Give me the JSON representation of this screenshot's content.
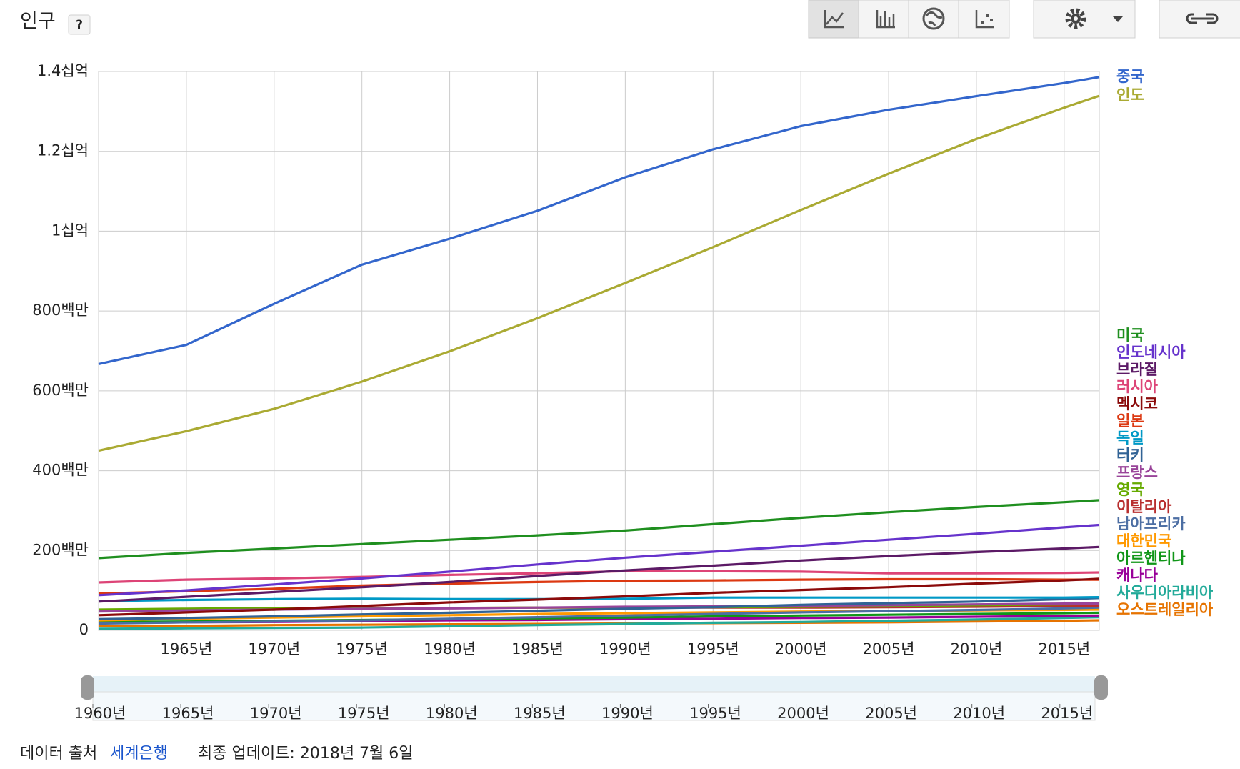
{
  "header": {
    "title": "인구",
    "help": "?"
  },
  "chart_data": {
    "type": "line",
    "x": [
      1960,
      1965,
      1970,
      1975,
      1980,
      1985,
      1990,
      1995,
      2000,
      2005,
      2010,
      2015,
      2017
    ],
    "xlim": [
      1960,
      2017
    ],
    "xticks": [
      {
        "value": 1965,
        "label": "1965년"
      },
      {
        "value": 1970,
        "label": "1970년"
      },
      {
        "value": 1975,
        "label": "1975년"
      },
      {
        "value": 1980,
        "label": "1980년"
      },
      {
        "value": 1985,
        "label": "1985년"
      },
      {
        "value": 1990,
        "label": "1990년"
      },
      {
        "value": 1995,
        "label": "1995년"
      },
      {
        "value": 2000,
        "label": "2000년"
      },
      {
        "value": 2005,
        "label": "2005년"
      },
      {
        "value": 2010,
        "label": "2010년"
      },
      {
        "value": 2015,
        "label": "2015년"
      }
    ],
    "ylim": [
      0,
      1400000000.0
    ],
    "yticks": [
      0,
      {
        "value": 200000000.0,
        "label": "200백만"
      },
      {
        "value": 400000000.0,
        "label": "400백만"
      },
      {
        "value": 600000000.0,
        "label": "600백만"
      },
      {
        "value": 800000000.0,
        "label": "800백만"
      },
      {
        "value": 1000000000.0,
        "label": "1십억"
      },
      {
        "value": 1200000000.0,
        "label": "1.2십억"
      },
      {
        "value": 1400000000.0,
        "label": "1.4십억"
      }
    ],
    "grid": true,
    "series": [
      {
        "name": "중국",
        "color": "#3366cc",
        "values": [
          667000000.0,
          715000000.0,
          818000000.0,
          916000000.0,
          981000000.0,
          1051000000.0,
          1135000000.0,
          1205000000.0,
          1263000000.0,
          1304000000.0,
          1338000000.0,
          1371000000.0,
          1386000000.0
        ]
      },
      {
        "name": "인도",
        "color": "#aaaa33",
        "values": [
          450000000.0,
          499000000.0,
          555000000.0,
          623000000.0,
          699000000.0,
          782000000.0,
          870000000.0,
          960000000.0,
          1053000000.0,
          1144000000.0,
          1231000000.0,
          1309000000.0,
          1339000000.0
        ]
      },
      {
        "name": "미국",
        "color": "#1f8f1f",
        "values": [
          181000000.0,
          194000000.0,
          205000000.0,
          216000000.0,
          227000000.0,
          238000000.0,
          250000000.0,
          266000000.0,
          282000000.0,
          296000000.0,
          309000000.0,
          321000000.0,
          326000000.0
        ]
      },
      {
        "name": "인도네시아",
        "color": "#6633cc",
        "values": [
          88000000.0,
          100000000.0,
          115000000.0,
          130000000.0,
          147000000.0,
          165000000.0,
          182000000.0,
          197000000.0,
          212000000.0,
          227000000.0,
          242000000.0,
          258000000.0,
          264000000.0
        ]
      },
      {
        "name": "브라질",
        "color": "#5c1a66",
        "values": [
          72000000.0,
          84000000.0,
          96000000.0,
          108000000.0,
          121000000.0,
          136000000.0,
          150000000.0,
          162000000.0,
          175000000.0,
          186000000.0,
          196000000.0,
          205000000.0,
          209000000.0
        ]
      },
      {
        "name": "러시아",
        "color": "#dd4477",
        "values": [
          120000000.0,
          127000000.0,
          130000000.0,
          134000000.0,
          139000000.0,
          143000000.0,
          148000000.0,
          148000000.0,
          147000000.0,
          143000000.0,
          143000000.0,
          144000000.0,
          145000000.0
        ]
      },
      {
        "name": "멕시코",
        "color": "#8b0a0a",
        "values": [
          38000000.0,
          45000000.0,
          52000000.0,
          61000000.0,
          70000000.0,
          77000000.0,
          85000000.0,
          94000000.0,
          101000000.0,
          108000000.0,
          117000000.0,
          125000000.0,
          129000000.0
        ]
      },
      {
        "name": "일본",
        "color": "#dc3912",
        "values": [
          92000000.0,
          98000000.0,
          104000000.0,
          112000000.0,
          117000000.0,
          121000000.0,
          124000000.0,
          125000000.0,
          127000000.0,
          128000000.0,
          128000000.0,
          127000000.0,
          127000000.0
        ]
      },
      {
        "name": "독일",
        "color": "#0099c6",
        "values": [
          73000000.0,
          76000000.0,
          78000000.0,
          79000000.0,
          78000000.0,
          78000000.0,
          79000000.0,
          82000000.0,
          82000000.0,
          82000000.0,
          82000000.0,
          82000000.0,
          83000000.0
        ]
      },
      {
        "name": "터키",
        "color": "#316395",
        "values": [
          28000000.0,
          31000000.0,
          35000000.0,
          40000000.0,
          44000000.0,
          49000000.0,
          54000000.0,
          58000000.0,
          64000000.0,
          68000000.0,
          72000000.0,
          78000000.0,
          81000000.0
        ]
      },
      {
        "name": "프랑스",
        "color": "#994499",
        "values": [
          47000000.0,
          50000000.0,
          52000000.0,
          54000000.0,
          55000000.0,
          57000000.0,
          59000000.0,
          60000000.0,
          61000000.0,
          63000000.0,
          65000000.0,
          67000000.0,
          67000000.0
        ]
      },
      {
        "name": "영국",
        "color": "#66aa00",
        "values": [
          52000000.0,
          54000000.0,
          56000000.0,
          56000000.0,
          56000000.0,
          57000000.0,
          57000000.0,
          58000000.0,
          59000000.0,
          60000000.0,
          63000000.0,
          65000000.0,
          66000000.0
        ]
      },
      {
        "name": "이탈리아",
        "color": "#b82e2e",
        "values": [
          50000000.0,
          52000000.0,
          54000000.0,
          55000000.0,
          56000000.0,
          57000000.0,
          57000000.0,
          57000000.0,
          57000000.0,
          58000000.0,
          59000000.0,
          61000000.0,
          61000000.0
        ]
      },
      {
        "name": "남아프리카",
        "color": "#4c6ea3",
        "values": [
          17000000.0,
          20000000.0,
          22000000.0,
          25000000.0,
          29000000.0,
          33000000.0,
          37000000.0,
          41000000.0,
          45000000.0,
          48000000.0,
          51000000.0,
          55000000.0,
          57000000.0
        ]
      },
      {
        "name": "대한민국",
        "color": "#ff9900",
        "values": [
          25000000.0,
          29000000.0,
          32000000.0,
          35000000.0,
          38000000.0,
          41000000.0,
          43000000.0,
          45000000.0,
          47000000.0,
          48000000.0,
          50000000.0,
          51000000.0,
          52000000.0
        ]
      },
      {
        "name": "아르헨티나",
        "color": "#109618",
        "values": [
          21000000.0,
          22000000.0,
          24000000.0,
          26000000.0,
          28000000.0,
          30000000.0,
          32000000.0,
          35000000.0,
          37000000.0,
          39000000.0,
          41000000.0,
          43000000.0,
          44000000.0
        ]
      },
      {
        "name": "캐나다",
        "color": "#990099",
        "values": [
          18000000.0,
          20000000.0,
          21000000.0,
          23000000.0,
          25000000.0,
          26000000.0,
          28000000.0,
          29000000.0,
          31000000.0,
          32000000.0,
          34000000.0,
          36000000.0,
          37000000.0
        ]
      },
      {
        "name": "사우디아라비아",
        "color": "#22aa99",
        "values": [
          4000000.0,
          5000000.0,
          6000000.0,
          7000000.0,
          10000000.0,
          13000000.0,
          16000000.0,
          19000000.0,
          21000000.0,
          24000000.0,
          27000000.0,
          31000000.0,
          33000000.0
        ]
      },
      {
        "name": "오스트레일리아",
        "color": "#e67300",
        "values": [
          10000000.0,
          11000000.0,
          13000000.0,
          14000000.0,
          15000000.0,
          16000000.0,
          17000000.0,
          18000000.0,
          19000000.0,
          20000000.0,
          22000000.0,
          24000000.0,
          25000000.0
        ]
      }
    ]
  },
  "slider": {
    "labels": [
      "1960년",
      "1965년",
      "1970년",
      "1975년",
      "1980년",
      "1985년",
      "1990년",
      "1995년",
      "2000년",
      "2005년",
      "2010년",
      "2015년"
    ]
  },
  "footer": {
    "source_label": "데이터 출처",
    "source_link": "세계은행",
    "updated": "최종 업데이트: 2018년 7월 6일"
  }
}
